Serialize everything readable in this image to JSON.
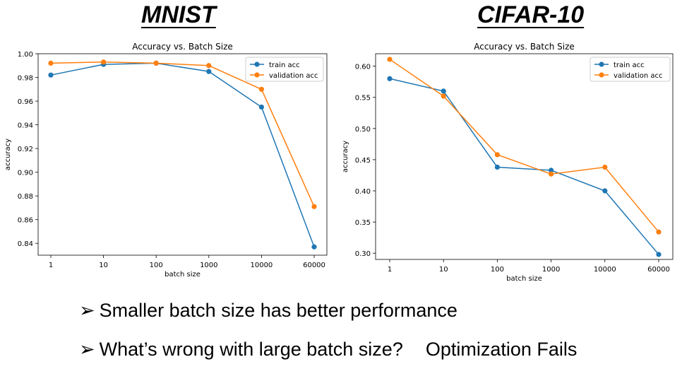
{
  "headings": {
    "left": "MNIST",
    "right": "CIFAR-10"
  },
  "bullets": [
    {
      "marker": "➢",
      "text": "Smaller batch size has better performance",
      "extra": ""
    },
    {
      "marker": "➢",
      "text": "What’s wrong with large batch size?",
      "extra": "Optimization Fails"
    }
  ],
  "colors": {
    "train": "#1f77b4",
    "validation": "#ff7f0e"
  },
  "chart_data": [
    {
      "type": "line",
      "title": "Accuracy vs. Batch Size",
      "xlabel": "batch size",
      "ylabel": "accuracy",
      "categories": [
        "1",
        "10",
        "100",
        "1000",
        "10000",
        "60000"
      ],
      "ylim": [
        0.83,
        1.0
      ],
      "yticks": [
        0.84,
        0.86,
        0.88,
        0.9,
        0.92,
        0.94,
        0.96,
        0.98,
        1.0
      ],
      "ytick_labels": [
        "0.84",
        "0.86",
        "0.88",
        "0.90",
        "0.92",
        "0.94",
        "0.96",
        "0.98",
        "1.00"
      ],
      "legend": "top-right",
      "series": [
        {
          "name": "train acc",
          "values": [
            0.982,
            0.991,
            0.992,
            0.985,
            0.955,
            0.837
          ]
        },
        {
          "name": "validation acc",
          "values": [
            0.992,
            0.993,
            0.992,
            0.99,
            0.97,
            0.871
          ]
        }
      ]
    },
    {
      "type": "line",
      "title": "Accuracy vs. Batch Size",
      "xlabel": "batch size",
      "ylabel": "accuracy",
      "categories": [
        "1",
        "10",
        "100",
        "1000",
        "10000",
        "60000"
      ],
      "ylim": [
        0.29,
        0.62
      ],
      "yticks": [
        0.3,
        0.35,
        0.4,
        0.45,
        0.5,
        0.55,
        0.6
      ],
      "ytick_labels": [
        "0.30",
        "0.35",
        "0.40",
        "0.45",
        "0.50",
        "0.55",
        "0.60"
      ],
      "legend": "top-right",
      "series": [
        {
          "name": "train acc",
          "values": [
            0.58,
            0.56,
            0.438,
            0.433,
            0.4,
            0.298
          ]
        },
        {
          "name": "validation acc",
          "values": [
            0.611,
            0.552,
            0.458,
            0.427,
            0.438,
            0.334
          ]
        }
      ]
    }
  ]
}
